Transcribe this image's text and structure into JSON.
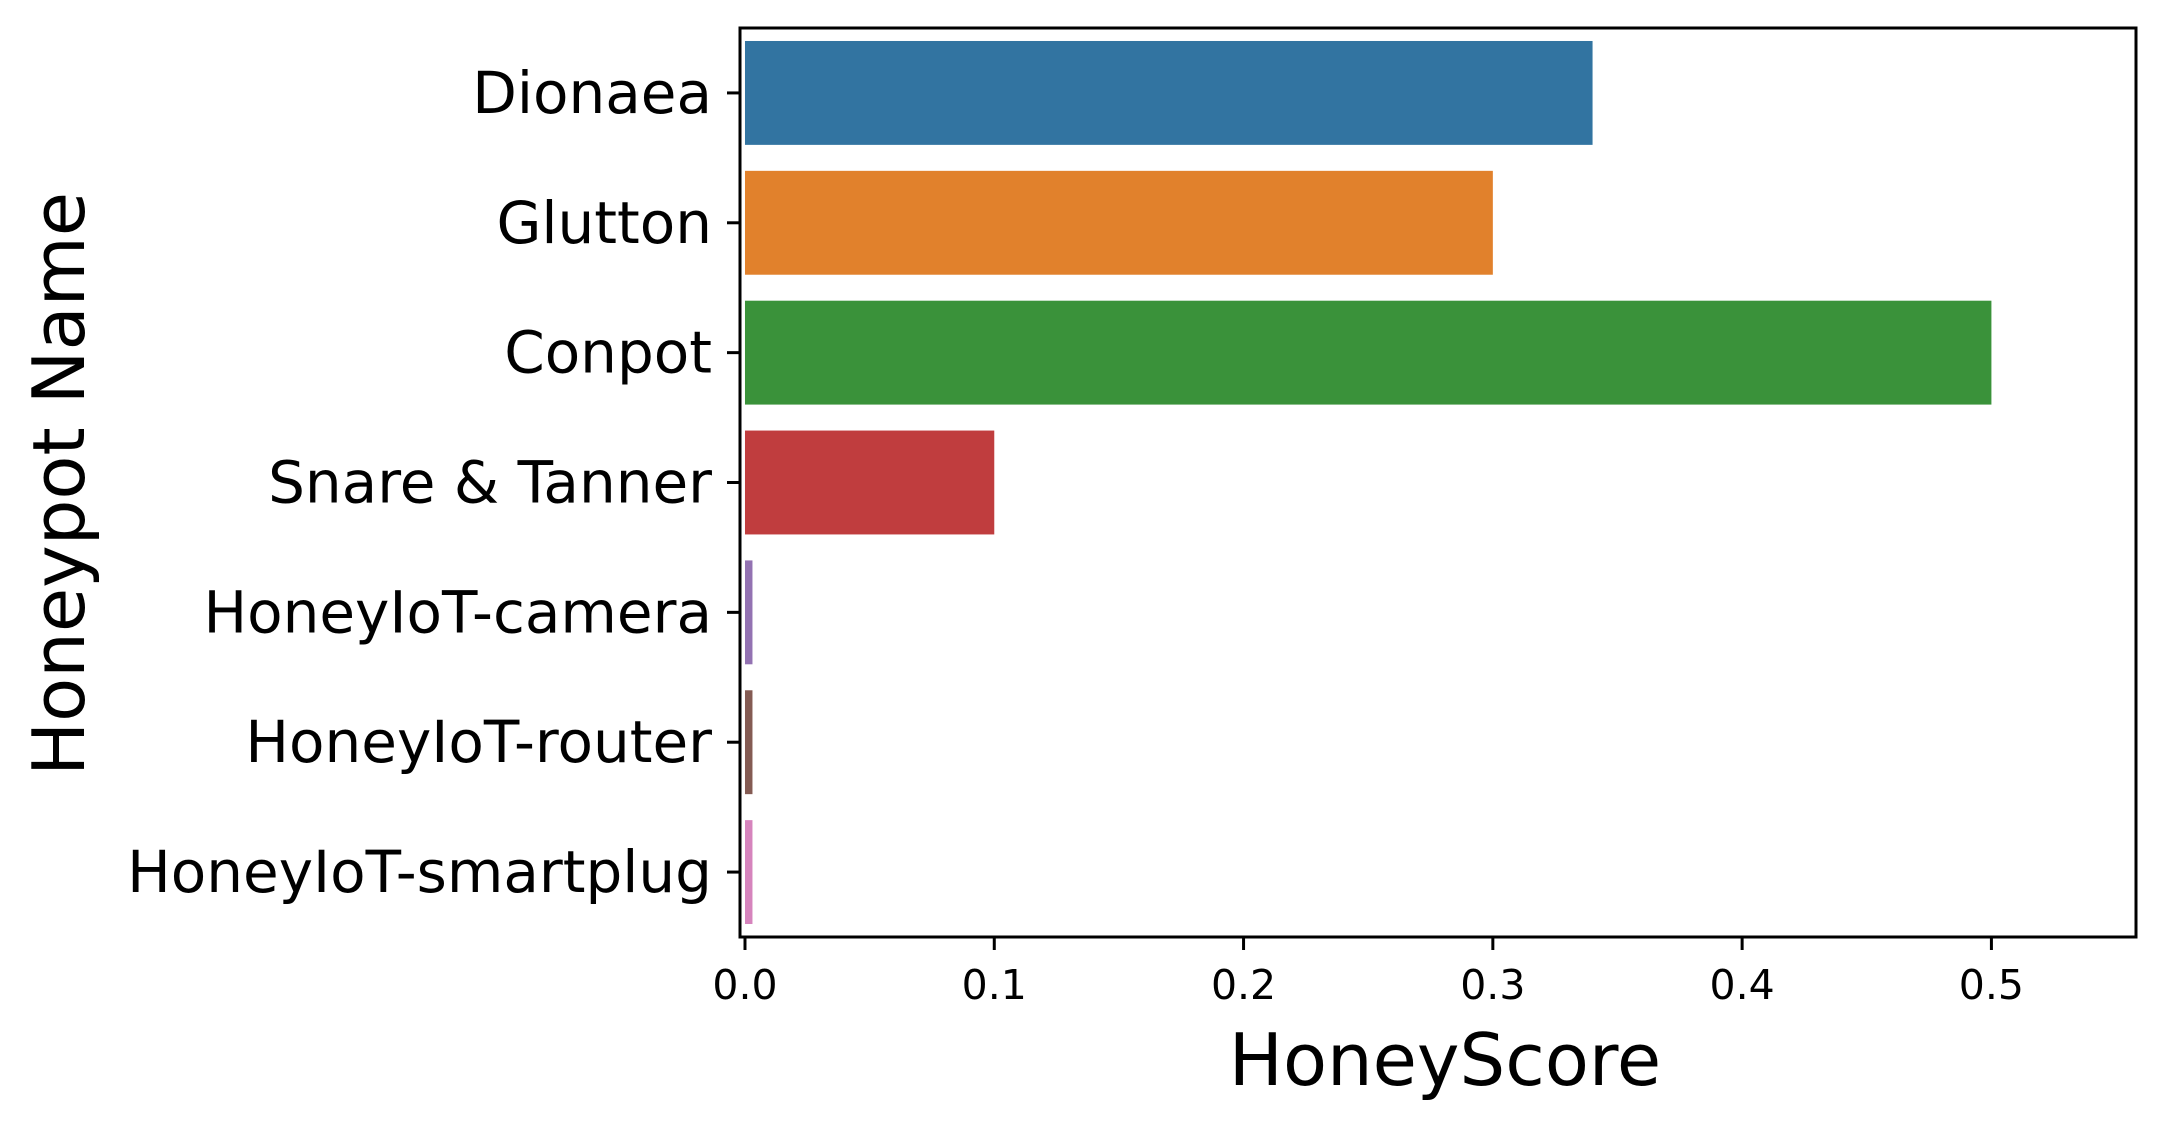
{
  "chart_data": {
    "type": "bar",
    "orientation": "horizontal",
    "xlabel": "HoneyScore",
    "ylabel": "Honeypot Name",
    "categories": [
      "Dionaea",
      "Glutton",
      "Conpot",
      "Snare & Tanner",
      "HoneyIoT-camera",
      "HoneyIoT-router",
      "HoneyIoT-smartplug"
    ],
    "values": [
      0.34,
      0.3,
      0.5,
      0.1,
      0.003,
      0.003,
      0.003
    ],
    "colors": [
      "#3274a1",
      "#e1812c",
      "#3a923a",
      "#c03d3e",
      "#9372b2",
      "#845b53",
      "#d684bd"
    ],
    "xlim": [
      -0.002,
      0.558
    ],
    "xticks": [
      0.0,
      0.1,
      0.2,
      0.3,
      0.4,
      0.5
    ],
    "xtick_labels": [
      "0.0",
      "0.1",
      "0.2",
      "0.3",
      "0.4",
      "0.5"
    ],
    "grid": false,
    "legend": "none"
  }
}
